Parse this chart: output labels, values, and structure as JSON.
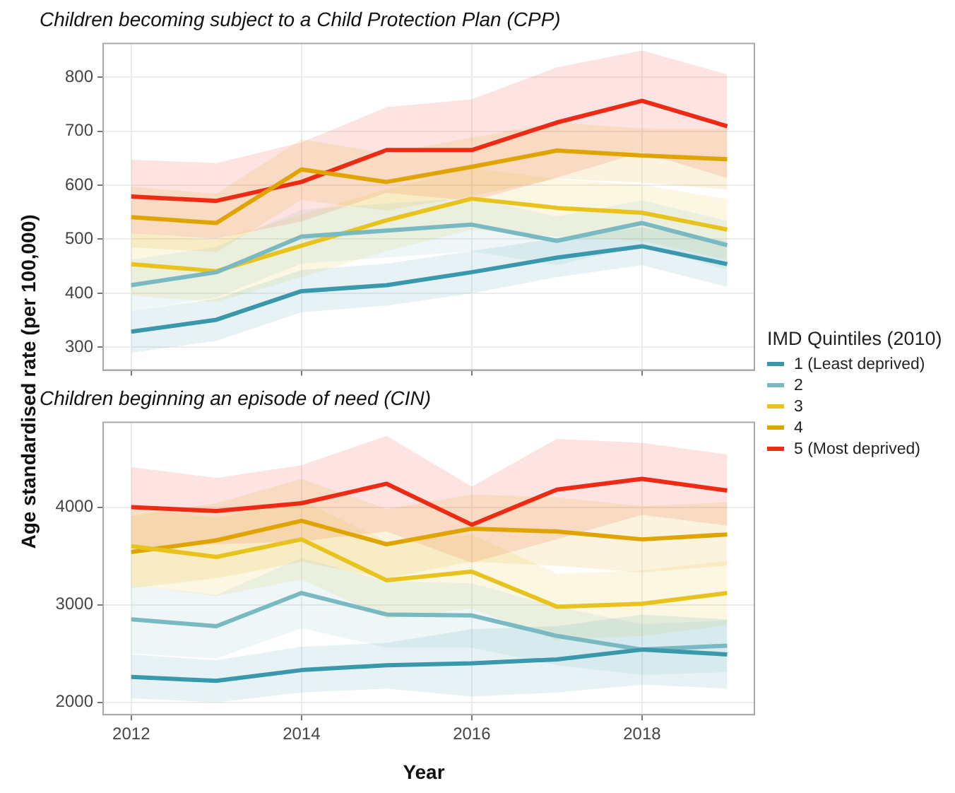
{
  "chart_data": [
    {
      "type": "line",
      "title": "Children becoming subject to a Child Protection Plan (CPP)",
      "ylabel": "Age standardised rate (per 100,000)",
      "legend_title": "IMD Quintiles (2010)",
      "legend": "right",
      "grid": true,
      "marker": "none",
      "line_style": "solid",
      "tick_labels": "y",
      "x": [
        2012,
        2013,
        2014,
        2015,
        2016,
        2017,
        2018,
        2019
      ],
      "xlim": [
        2011.67,
        2019.32
      ],
      "xticks": [
        2012,
        2014,
        2016,
        2018
      ],
      "ylim": [
        258,
        862
      ],
      "yticks": [
        300,
        400,
        500,
        600,
        700,
        800
      ],
      "series": [
        {
          "name": "1 (Least deprived)",
          "color": "#3a98ad",
          "values": [
            329,
            351,
            404,
            415,
            439,
            466,
            487,
            454
          ],
          "lower": [
            290,
            312,
            365,
            377,
            400,
            430,
            452,
            412
          ],
          "upper": [
            368,
            390,
            443,
            455,
            478,
            502,
            522,
            496
          ]
        },
        {
          "name": "2",
          "color": "#79b9c2",
          "values": [
            415,
            439,
            505,
            516,
            527,
            497,
            530,
            489
          ],
          "lower": [
            368,
            392,
            455,
            466,
            478,
            452,
            488,
            444
          ],
          "upper": [
            462,
            486,
            555,
            566,
            576,
            542,
            572,
            534
          ]
        },
        {
          "name": "3",
          "color": "#e8c31d",
          "values": [
            454,
            441,
            488,
            535,
            575,
            558,
            549,
            518
          ],
          "lower": [
            396,
            384,
            430,
            478,
            518,
            505,
            497,
            462
          ],
          "upper": [
            512,
            498,
            546,
            592,
            632,
            611,
            601,
            574
          ]
        },
        {
          "name": "4",
          "color": "#e0a400",
          "values": [
            541,
            530,
            629,
            606,
            634,
            664,
            655,
            648
          ],
          "lower": [
            485,
            476,
            573,
            553,
            580,
            612,
            605,
            592
          ],
          "upper": [
            597,
            584,
            685,
            659,
            688,
            716,
            705,
            704
          ]
        },
        {
          "name": "5 (Most deprived)",
          "color": "#ee2a15",
          "values": [
            579,
            571,
            606,
            665,
            665,
            716,
            756,
            709
          ],
          "lower": [
            511,
            501,
            533,
            586,
            571,
            614,
            661,
            613
          ],
          "upper": [
            647,
            641,
            679,
            744,
            759,
            818,
            849,
            805
          ]
        }
      ]
    },
    {
      "type": "line",
      "title": "Children beginning an episode of need (CIN)",
      "xlabel": "Year",
      "grid": true,
      "marker": "none",
      "line_style": "solid",
      "x": [
        2012,
        2013,
        2014,
        2015,
        2016,
        2017,
        2018,
        2019
      ],
      "xlim": [
        2011.67,
        2019.32
      ],
      "xticks": [
        2012,
        2014,
        2016,
        2018
      ],
      "ylim": [
        1873,
        4869
      ],
      "yticks": [
        2000,
        3000,
        4000
      ],
      "series": [
        {
          "color": "#3a98ad",
          "values": [
            2260,
            2220,
            2330,
            2380,
            2400,
            2440,
            2540,
            2490
          ],
          "lower": [
            2040,
            2000,
            2100,
            2140,
            2060,
            2100,
            2180,
            2140
          ],
          "upper": [
            2490,
            2430,
            2570,
            2610,
            2750,
            2780,
            2900,
            2850
          ]
        },
        {
          "color": "#79b9c2",
          "values": [
            2850,
            2780,
            3120,
            2900,
            2890,
            2680,
            2540,
            2580
          ],
          "lower": [
            2500,
            2450,
            2760,
            2560,
            2560,
            2380,
            2280,
            2310
          ],
          "upper": [
            3200,
            3100,
            3480,
            3240,
            3220,
            2980,
            2800,
            2840
          ]
        },
        {
          "color": "#e8c31d",
          "values": [
            3600,
            3490,
            3670,
            3250,
            3340,
            2980,
            3010,
            3120
          ],
          "lower": [
            3200,
            3090,
            3260,
            2860,
            2960,
            2640,
            2680,
            2790
          ],
          "upper": [
            4000,
            3890,
            4070,
            3650,
            3720,
            3320,
            3350,
            3450
          ]
        },
        {
          "color": "#e0a400",
          "values": [
            3540,
            3660,
            3860,
            3620,
            3780,
            3750,
            3670,
            3720
          ],
          "lower": [
            3170,
            3270,
            3440,
            3270,
            3440,
            3400,
            3330,
            3400
          ],
          "upper": [
            3910,
            4040,
            4290,
            3980,
            4130,
            4100,
            4010,
            4050
          ]
        },
        {
          "color": "#ee2a15",
          "values": [
            4000,
            3960,
            4040,
            4240,
            3820,
            4180,
            4290,
            4170
          ],
          "lower": [
            3580,
            3620,
            3650,
            3750,
            3430,
            3670,
            3920,
            3810
          ],
          "upper": [
            4410,
            4300,
            4430,
            4730,
            4210,
            4700,
            4660,
            4540
          ]
        }
      ]
    }
  ]
}
